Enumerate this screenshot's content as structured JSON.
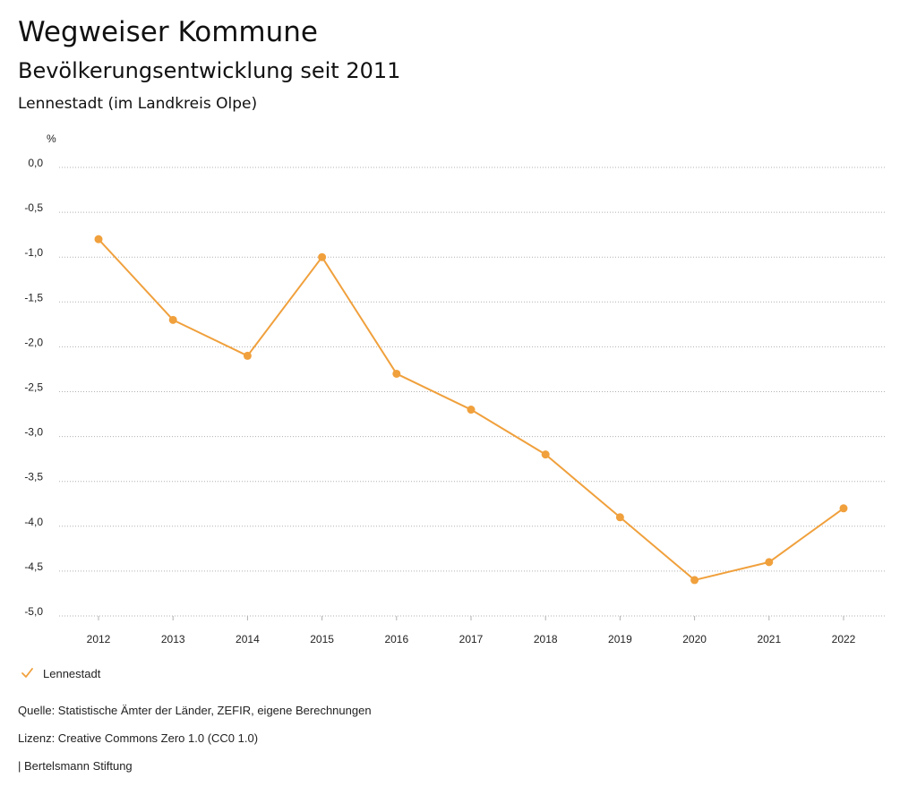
{
  "header": {
    "title": "Wegweiser Kommune",
    "subtitle": "Bevölkerungsentwicklung seit 2011",
    "region": "Lennestadt (im Landkreis Olpe)"
  },
  "colors": {
    "series": "#f0a03c",
    "grid": "#b0b0b0",
    "text": "#222222"
  },
  "chart_data": {
    "type": "line",
    "title": "Bevölkerungsentwicklung seit 2011",
    "xlabel": "",
    "ylabel": "%",
    "ylim": [
      -5.0,
      0.0
    ],
    "ytick_values": [
      0.0,
      -0.5,
      -1.0,
      -1.5,
      -2.0,
      -2.5,
      -3.0,
      -3.5,
      -4.0,
      -4.5,
      -5.0
    ],
    "ytick_labels": [
      "0,0",
      "-0,5",
      "-1,0",
      "-1,5",
      "-2,0",
      "-2,5",
      "-3,0",
      "-3,5",
      "-4,0",
      "-4,5",
      "-5,0"
    ],
    "categories": [
      "2012",
      "2013",
      "2014",
      "2015",
      "2016",
      "2017",
      "2018",
      "2019",
      "2020",
      "2021",
      "2022"
    ],
    "grid": true,
    "legend_position": "bottom-left",
    "series": [
      {
        "name": "Lennestadt",
        "values": [
          -0.8,
          -1.7,
          -2.1,
          -1.0,
          -2.3,
          -2.7,
          -3.2,
          -3.9,
          -4.6,
          -4.4,
          -3.8
        ]
      }
    ]
  },
  "legend": {
    "icon": "check-icon",
    "label": "Lennestadt"
  },
  "footer": {
    "source": "Quelle: Statistische Ämter der Länder, ZEFIR, eigene Berechnungen",
    "license": "Lizenz: Creative Commons Zero 1.0 (CC0 1.0)",
    "publisher": "| Bertelsmann Stiftung"
  }
}
